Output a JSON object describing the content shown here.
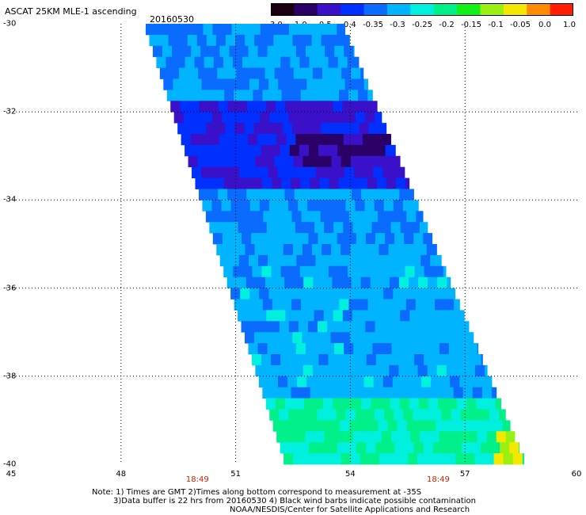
{
  "header": {
    "title": "ASCAT 25KM MLE-1 ascending",
    "date": "20160530"
  },
  "colorbar": {
    "labels": [
      "-3.0",
      "-1.0",
      "-0.5",
      "-0.4",
      "-0.35",
      "-0.3",
      "-0.25",
      "-0.2",
      "-0.15",
      "-0.1",
      "-0.05",
      "0.0",
      "1.0"
    ],
    "colors": [
      "#1a0010",
      "#2b0066",
      "#3a10c8",
      "#0030ff",
      "#0a6cff",
      "#00b4ff",
      "#00f0e0",
      "#00f08a",
      "#12f018",
      "#9af010",
      "#f4e800",
      "#ff8c00",
      "#ff1e00"
    ]
  },
  "chart_data": {
    "type": "heatmap",
    "title": "ASCAT 25KM MLE-1 ascending",
    "date": "20160530",
    "xlabel": "",
    "ylabel": "",
    "xlim": [
      45,
      60
    ],
    "ylim": [
      -40,
      -30
    ],
    "xticks": [
      "45",
      "48",
      "51",
      "54",
      "57",
      "60"
    ],
    "yticks": [
      "-30",
      "-32",
      "-34",
      "-36",
      "-38",
      "-40"
    ],
    "grid": true,
    "swath_corners_lonlat": [
      [
        48.6,
        -30
      ],
      [
        53.8,
        -30
      ],
      [
        58.6,
        -40
      ],
      [
        52.3,
        -40
      ]
    ],
    "time_labels": [
      {
        "lon": 50.0,
        "text": "18:49"
      },
      {
        "lon": 56.3,
        "text": "18:49"
      }
    ],
    "value_regions": [
      {
        "lat_range": [
          -30,
          -31.8
        ],
        "dominant_value": -0.3
      },
      {
        "lat_range": [
          -31.8,
          -33.8
        ],
        "dominant_value": -0.4
      },
      {
        "lat_range": [
          -32.6,
          -33.2
        ],
        "lon_range": [
          52.5,
          55
        ],
        "dominant_value": -0.5
      },
      {
        "lat_range": [
          -33.8,
          -35.5
        ],
        "dominant_value": -0.3
      },
      {
        "lat_range": [
          -35.5,
          -38.5
        ],
        "dominant_value": -0.28
      },
      {
        "lat_range": [
          -38.5,
          -40
        ],
        "dominant_value": -0.2
      },
      {
        "lat_range": [
          -39.3,
          -40
        ],
        "lon_range": [
          57.8,
          58.4
        ],
        "dominant_value": -0.05
      }
    ],
    "colorbar_ticks": [
      -3.0,
      -1.0,
      -0.5,
      -0.4,
      -0.35,
      -0.3,
      -0.25,
      -0.2,
      -0.15,
      -0.1,
      -0.05,
      0.0,
      1.0
    ]
  },
  "notes": {
    "line1": "Note: 1) Times are GMT 2)Times along bottom correspond to measurement at -35S",
    "line2": "3)Data buffer is 22 hrs from 20160530 4) Black wind barbs indicate possible contamination",
    "line3": "NOAA/NESDIS/Center for Satellite Applications and Research"
  }
}
